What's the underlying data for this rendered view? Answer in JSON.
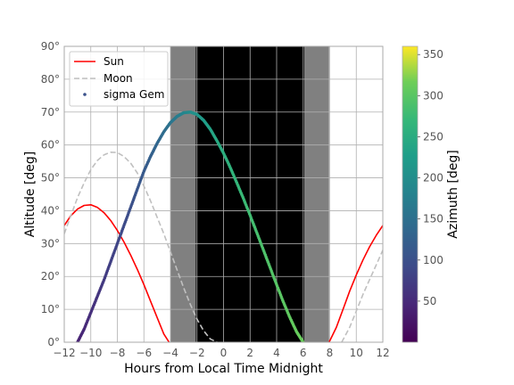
{
  "chart_data": {
    "type": "line",
    "xlabel": "Hours from Local Time Midnight",
    "ylabel": "Altitude [deg]",
    "xlim": [
      -12,
      12
    ],
    "ylim": [
      0,
      90
    ],
    "x_ticks": [
      -12,
      -10,
      -8,
      -6,
      -4,
      -2,
      0,
      2,
      4,
      6,
      8,
      10,
      12
    ],
    "y_ticks": [
      0,
      10,
      20,
      30,
      40,
      50,
      60,
      70,
      80,
      90
    ],
    "x_tick_labels": [
      "−12",
      "−10",
      "−8",
      "−6",
      "−4",
      "−2",
      "0",
      "2",
      "4",
      "6",
      "8",
      "10",
      "12"
    ],
    "y_tick_labels": [
      "0°",
      "10°",
      "20°",
      "30°",
      "40°",
      "50°",
      "60°",
      "70°",
      "80°",
      "90°"
    ],
    "grid": true,
    "legend_position": "top-left",
    "night_shading": [
      {
        "x0": -4.0,
        "x1": -2.1,
        "shade": "twilight",
        "color": "#808080"
      },
      {
        "x0": -2.1,
        "x1": 6.1,
        "shade": "night",
        "color": "#000000"
      },
      {
        "x0": 6.1,
        "x1": 7.95,
        "shade": "twilight",
        "color": "#808080"
      }
    ],
    "series": [
      {
        "name": "Sun",
        "style": "solid",
        "color": "#ff0000",
        "segments": [
          [
            [
              -12,
              35.5
            ],
            [
              -11.5,
              38.5
            ],
            [
              -11,
              40.5
            ],
            [
              -10.5,
              41.6
            ],
            [
              -10,
              41.8
            ],
            [
              -9.5,
              41
            ],
            [
              -9,
              39.4
            ],
            [
              -8.5,
              37
            ],
            [
              -8,
              34
            ],
            [
              -7.5,
              30.5
            ],
            [
              -7,
              26.5
            ],
            [
              -6.5,
              22.2
            ],
            [
              -6,
              17.5
            ],
            [
              -5.5,
              12.5
            ],
            [
              -5,
              7.5
            ],
            [
              -4.5,
              2.5
            ],
            [
              -4.1,
              0
            ]
          ],
          [
            [
              7.95,
              0
            ],
            [
              8.5,
              4.5
            ],
            [
              9,
              10
            ],
            [
              9.5,
              15.5
            ],
            [
              10,
              20.5
            ],
            [
              10.5,
              25
            ],
            [
              11,
              29
            ],
            [
              11.5,
              32.5
            ],
            [
              12,
              35.5
            ]
          ]
        ]
      },
      {
        "name": "Moon",
        "style": "dashed",
        "color": "#c0c0c0",
        "segments": [
          [
            [
              -12,
              33
            ],
            [
              -11.5,
              38.5
            ],
            [
              -11,
              44
            ],
            [
              -10.5,
              48.5
            ],
            [
              -10,
              52.5
            ],
            [
              -9.5,
              55.3
            ],
            [
              -9,
              57
            ],
            [
              -8.5,
              57.8
            ],
            [
              -8,
              57.7
            ],
            [
              -7.5,
              56.5
            ],
            [
              -7,
              54.5
            ],
            [
              -6.5,
              51.5
            ],
            [
              -6,
              47.5
            ],
            [
              -5.5,
              43
            ],
            [
              -5,
              38
            ],
            [
              -4.5,
              33
            ],
            [
              -4,
              27.5
            ],
            [
              -3.5,
              22
            ],
            [
              -3,
              16.5
            ],
            [
              -2.5,
              11.5
            ],
            [
              -2,
              7
            ],
            [
              -1.5,
              3.5
            ],
            [
              -1,
              1
            ],
            [
              -0.5,
              0
            ]
          ],
          [
            [
              8.9,
              0
            ],
            [
              9.5,
              4.5
            ],
            [
              10,
              9.5
            ],
            [
              10.5,
              14.5
            ],
            [
              11,
              19
            ],
            [
              11.5,
              23.5
            ],
            [
              12,
              28
            ]
          ]
        ]
      },
      {
        "name": "sigma Gem",
        "style": "scatter",
        "colorbar_field": "azimuth_deg",
        "points": [
          {
            "x": -11.0,
            "alt": 0,
            "az": 40
          },
          {
            "x": -10.5,
            "alt": 4,
            "az": 48
          },
          {
            "x": -10.0,
            "alt": 9,
            "az": 56
          },
          {
            "x": -9.5,
            "alt": 14,
            "az": 63
          },
          {
            "x": -9.0,
            "alt": 19,
            "az": 70
          },
          {
            "x": -8.5,
            "alt": 24.5,
            "az": 77
          },
          {
            "x": -8.0,
            "alt": 30,
            "az": 84
          },
          {
            "x": -7.5,
            "alt": 35.5,
            "az": 91
          },
          {
            "x": -7.0,
            "alt": 41,
            "az": 99
          },
          {
            "x": -6.5,
            "alt": 46.5,
            "az": 107
          },
          {
            "x": -6.0,
            "alt": 52,
            "az": 115
          },
          {
            "x": -5.5,
            "alt": 56.5,
            "az": 124
          },
          {
            "x": -5.0,
            "alt": 60.5,
            "az": 134
          },
          {
            "x": -4.5,
            "alt": 64,
            "az": 145
          },
          {
            "x": -4.0,
            "alt": 66.8,
            "az": 157
          },
          {
            "x": -3.5,
            "alt": 68.7,
            "az": 170
          },
          {
            "x": -3.0,
            "alt": 69.8,
            "az": 184
          },
          {
            "x": -2.5,
            "alt": 70,
            "az": 198
          },
          {
            "x": -2.0,
            "alt": 69.3,
            "az": 211
          },
          {
            "x": -1.5,
            "alt": 67.5,
            "az": 224
          },
          {
            "x": -1.0,
            "alt": 64.8,
            "az": 235
          },
          {
            "x": -0.5,
            "alt": 61.3,
            "az": 245
          },
          {
            "x": 0.0,
            "alt": 57.5,
            "az": 253
          },
          {
            "x": 0.5,
            "alt": 53.2,
            "az": 261
          },
          {
            "x": 1.0,
            "alt": 48.5,
            "az": 268
          },
          {
            "x": 1.5,
            "alt": 43.7,
            "az": 274
          },
          {
            "x": 2.0,
            "alt": 38.6,
            "az": 280
          },
          {
            "x": 2.5,
            "alt": 33.4,
            "az": 285
          },
          {
            "x": 3.0,
            "alt": 28.1,
            "az": 290
          },
          {
            "x": 3.5,
            "alt": 22.8,
            "az": 294
          },
          {
            "x": 4.0,
            "alt": 17.5,
            "az": 298
          },
          {
            "x": 4.5,
            "alt": 12.3,
            "az": 302
          },
          {
            "x": 5.0,
            "alt": 7.5,
            "az": 306
          },
          {
            "x": 5.5,
            "alt": 3.2,
            "az": 310
          },
          {
            "x": 6.0,
            "alt": 0,
            "az": 313
          }
        ]
      }
    ],
    "colorbar": {
      "label": "Azimuth [deg]",
      "range": [
        0,
        360
      ],
      "ticks": [
        50,
        100,
        150,
        200,
        250,
        300,
        350
      ],
      "tick_labels": [
        "50",
        "100",
        "150",
        "200",
        "250",
        "300",
        "350"
      ],
      "colormap": "viridis"
    },
    "colors": {
      "background": "#ffffff",
      "grid": "#b0b0b0",
      "spine": "#aaaaaa",
      "tick_text": "#555555",
      "label_text": "#000000"
    }
  }
}
